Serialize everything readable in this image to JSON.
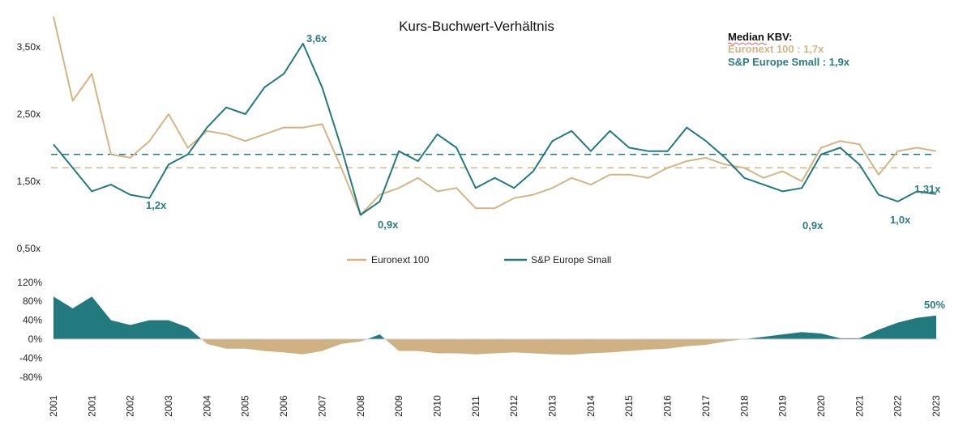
{
  "chart_data": [
    {
      "type": "line",
      "title": "Kurs-Buchwert-Verhältnis",
      "x_tick_labels": [
        "2001",
        "2001",
        "2002",
        "2003",
        "2004",
        "2005",
        "2006",
        "2007",
        "2008",
        "2009",
        "2010",
        "2011",
        "2012",
        "2013",
        "2014",
        "2015",
        "2016",
        "2017",
        "2018",
        "2019",
        "2020",
        "2021",
        "2022",
        "2023"
      ],
      "samples_per_tick_interval": 2,
      "y_tick_labels": [
        "3,50x",
        "2,50x",
        "1,50x",
        "0,50x"
      ],
      "y_ticks": [
        3.5,
        2.5,
        1.5,
        0.5
      ],
      "ylim": [
        0.5,
        4.0
      ],
      "grid": false,
      "legend_position": "bottom-center",
      "colors": {
        "Euronext 100": "#d4b483",
        "S&P Europe Small": "#237a7e"
      },
      "series": [
        {
          "name": "Euronext 100",
          "values": [
            3.95,
            2.7,
            3.1,
            1.9,
            1.85,
            2.1,
            2.5,
            2.0,
            2.25,
            2.2,
            2.1,
            2.2,
            2.3,
            2.3,
            2.35,
            1.7,
            1.0,
            1.3,
            1.4,
            1.55,
            1.35,
            1.4,
            1.1,
            1.1,
            1.25,
            1.3,
            1.4,
            1.55,
            1.45,
            1.6,
            1.6,
            1.55,
            1.7,
            1.8,
            1.85,
            1.75,
            1.7,
            1.55,
            1.65,
            1.5,
            2.0,
            2.1,
            2.05,
            1.6,
            1.95,
            2.0,
            1.95
          ]
        },
        {
          "name": "S&P Europe Small",
          "values": [
            2.05,
            1.7,
            1.35,
            1.45,
            1.3,
            1.25,
            1.75,
            1.9,
            2.3,
            2.6,
            2.5,
            2.9,
            3.1,
            3.55,
            2.9,
            2.0,
            1.0,
            1.2,
            1.95,
            1.8,
            2.2,
            2.0,
            1.4,
            1.55,
            1.4,
            1.65,
            2.1,
            2.25,
            1.95,
            2.25,
            2.0,
            1.95,
            1.95,
            2.3,
            2.1,
            1.85,
            1.55,
            1.45,
            1.35,
            1.4,
            1.9,
            2.0,
            1.75,
            1.3,
            1.2,
            1.35,
            1.31
          ]
        }
      ],
      "median_lines": [
        {
          "series": "Euronext 100",
          "value": 1.7
        },
        {
          "series": "S&P Europe Small",
          "value": 1.9
        }
      ],
      "median_box": {
        "heading": "Median KBV:",
        "euronext": "Euronext 100 : 1,7x",
        "sp": "S&P Europe Small : 1,9x"
      },
      "annotations": [
        "3,6x",
        "1,2x",
        "0,9x",
        "0,9x",
        "1,0x",
        "1,31x"
      ],
      "legend": [
        "Euronext 100",
        "S&P Europe Small"
      ]
    },
    {
      "type": "area",
      "y_tick_labels": [
        "120%",
        "80%",
        "40%",
        "0%",
        "-40%",
        "-80%"
      ],
      "y_ticks": [
        120,
        80,
        40,
        0,
        -40,
        -80
      ],
      "ylim": [
        -80,
        120
      ],
      "colors": {
        "positive": "#237a7e",
        "negative": "#cfb283"
      },
      "values": [
        90,
        65,
        90,
        40,
        30,
        40,
        40,
        25,
        -10,
        -20,
        -20,
        -25,
        -28,
        -32,
        -25,
        -10,
        -5,
        10,
        -25,
        -25,
        -30,
        -30,
        -32,
        -30,
        -28,
        -30,
        -32,
        -33,
        -30,
        -28,
        -25,
        -22,
        -20,
        -15,
        -12,
        -5,
        0,
        5,
        10,
        15,
        12,
        2,
        2,
        20,
        35,
        45,
        50
      ],
      "annotation": "50%"
    }
  ]
}
